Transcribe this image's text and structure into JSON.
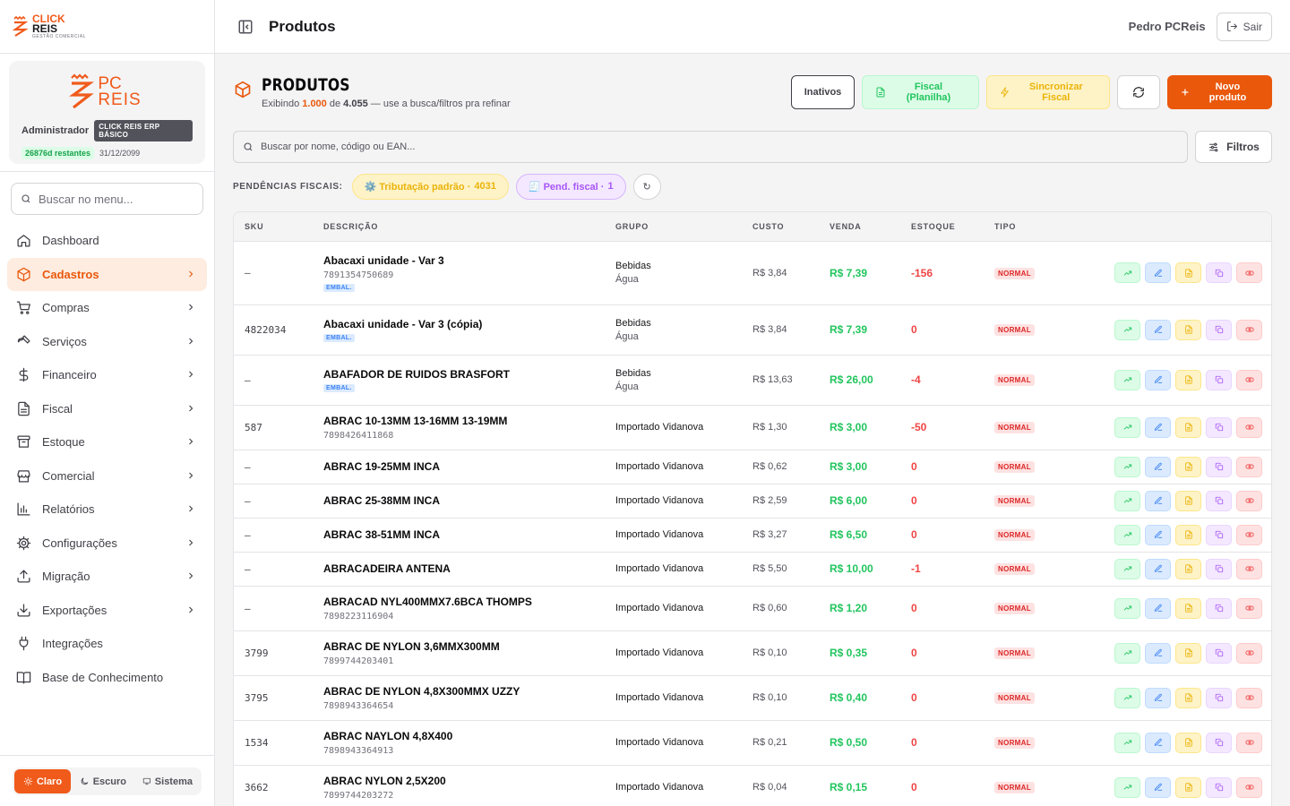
{
  "brand": {
    "logo_line1": "CLICK",
    "logo_line2": "REIS",
    "logo_tagline": "GESTÃO COMERCIAL",
    "pc_logo_line1": "PC",
    "pc_logo_line2": "REIS",
    "accent_color": "#f05a1a"
  },
  "profile": {
    "role": "Administrador",
    "plan": "CLICK REIS ERP BÁSICO",
    "days_left": "26876d restantes",
    "expiry": "31/12/2099"
  },
  "sidebar": {
    "search_placeholder": "Buscar no menu...",
    "items": [
      {
        "label": "Dashboard",
        "icon": "home-icon",
        "chevron": false,
        "active": false
      },
      {
        "label": "Cadastros",
        "icon": "box-icon",
        "chevron": true,
        "active": true
      },
      {
        "label": "Compras",
        "icon": "cart-icon",
        "chevron": true,
        "active": false
      },
      {
        "label": "Serviços",
        "icon": "wrench-icon",
        "chevron": true,
        "active": false
      },
      {
        "label": "Financeiro",
        "icon": "dollar-icon",
        "chevron": true,
        "active": false
      },
      {
        "label": "Fiscal",
        "icon": "document-icon",
        "chevron": true,
        "active": false
      },
      {
        "label": "Estoque",
        "icon": "archive-icon",
        "chevron": true,
        "active": false
      },
      {
        "label": "Comercial",
        "icon": "store-icon",
        "chevron": true,
        "active": false
      },
      {
        "label": "Relatórios",
        "icon": "bar-chart-icon",
        "chevron": true,
        "active": false
      },
      {
        "label": "Configurações",
        "icon": "gear-icon",
        "chevron": true,
        "active": false
      },
      {
        "label": "Migração",
        "icon": "upload-icon",
        "chevron": true,
        "active": false
      },
      {
        "label": "Exportações",
        "icon": "download-icon",
        "chevron": true,
        "active": false
      },
      {
        "label": "Integrações",
        "icon": "plug-icon",
        "chevron": false,
        "active": false
      },
      {
        "label": "Base de Conhecimento",
        "icon": "book-icon",
        "chevron": false,
        "active": false
      }
    ],
    "theme": {
      "light": "Claro",
      "dark": "Escuro",
      "system": "Sistema",
      "selected": "Claro"
    }
  },
  "header": {
    "title": "Produtos",
    "user": "Pedro PCReis",
    "logout": "Sair"
  },
  "page": {
    "title": "PRODUTOS",
    "subtitle_prefix": "Exibindo",
    "shown": "1.000",
    "subtitle_of": "de",
    "total": "4.055",
    "subtitle_suffix": "— use a busca/filtros pra refinar",
    "actions": {
      "inactive": "Inativos",
      "fiscal_sheet": "Fiscal (Planilha)",
      "sync_fiscal": "Sincronizar Fiscal",
      "new_product": "Novo produto"
    },
    "search_placeholder": "Buscar por nome, código ou EAN...",
    "filters": "Filtros",
    "pending_label": "PENDÊNCIAS FISCAIS:",
    "pending_tax": "⚙️ Tributação padrão ·",
    "pending_tax_count": "4031",
    "pending_fiscal": "🧾 Pend. fiscal ·",
    "pending_fiscal_count": "1",
    "pending_refresh": "↻"
  },
  "table": {
    "columns": [
      "SKU",
      "DESCRIÇÃO",
      "GRUPO",
      "CUSTO",
      "VENDA",
      "ESTOQUE",
      "TIPO",
      ""
    ],
    "rows": [
      {
        "sku": "–",
        "name": "Abacaxi unidade - Var 3",
        "ean": "7891354750689",
        "embal": "EMBAL.",
        "group": "Bebidas",
        "subgroup": "Água",
        "cost": "R$ 3,84",
        "price": "R$ 7,39",
        "stock": "-156",
        "type": "NORMAL"
      },
      {
        "sku": "4822034",
        "name": "Abacaxi unidade - Var 3 (cópia)",
        "ean": "",
        "embal": "EMBAL.",
        "group": "Bebidas",
        "subgroup": "Água",
        "cost": "R$ 3,84",
        "price": "R$ 7,39",
        "stock": "0",
        "type": "NORMAL"
      },
      {
        "sku": "–",
        "name": "ABAFADOR DE RUIDOS BRASFORT",
        "ean": "",
        "embal": "EMBAL.",
        "group": "Bebidas",
        "subgroup": "Água",
        "cost": "R$ 13,63",
        "price": "R$ 26,00",
        "stock": "-4",
        "type": "NORMAL"
      },
      {
        "sku": "587",
        "name": "ABRAC 10-13MM 13-16MM 13-19MM",
        "ean": "7898426411868",
        "embal": "",
        "group": "Importado Vidanova",
        "subgroup": "",
        "cost": "R$ 1,30",
        "price": "R$ 3,00",
        "stock": "-50",
        "type": "NORMAL"
      },
      {
        "sku": "–",
        "name": "ABRAC 19-25MM INCA",
        "ean": "",
        "embal": "",
        "group": "Importado Vidanova",
        "subgroup": "",
        "cost": "R$ 0,62",
        "price": "R$ 3,00",
        "stock": "0",
        "type": "NORMAL"
      },
      {
        "sku": "–",
        "name": "ABRAC 25-38MM INCA",
        "ean": "",
        "embal": "",
        "group": "Importado Vidanova",
        "subgroup": "",
        "cost": "R$ 2,59",
        "price": "R$ 6,00",
        "stock": "0",
        "type": "NORMAL"
      },
      {
        "sku": "–",
        "name": "ABRAC 38-51MM INCA",
        "ean": "",
        "embal": "",
        "group": "Importado Vidanova",
        "subgroup": "",
        "cost": "R$ 3,27",
        "price": "R$ 6,50",
        "stock": "0",
        "type": "NORMAL"
      },
      {
        "sku": "–",
        "name": "ABRACADEIRA ANTENA",
        "ean": "",
        "embal": "",
        "group": "Importado Vidanova",
        "subgroup": "",
        "cost": "R$ 5,50",
        "price": "R$ 10,00",
        "stock": "-1",
        "type": "NORMAL"
      },
      {
        "sku": "–",
        "name": "ABRACAD NYL400MMX7.6BCA THOMPS",
        "ean": "7898223116904",
        "embal": "",
        "group": "Importado Vidanova",
        "subgroup": "",
        "cost": "R$ 0,60",
        "price": "R$ 1,20",
        "stock": "0",
        "type": "NORMAL"
      },
      {
        "sku": "3799",
        "name": "ABRAC DE NYLON 3,6MMX300MM",
        "ean": "7899744203401",
        "embal": "",
        "group": "Importado Vidanova",
        "subgroup": "",
        "cost": "R$ 0,10",
        "price": "R$ 0,35",
        "stock": "0",
        "type": "NORMAL"
      },
      {
        "sku": "3795",
        "name": "ABRAC DE NYLON 4,8X300MMX UZZY",
        "ean": "7898943364654",
        "embal": "",
        "group": "Importado Vidanova",
        "subgroup": "",
        "cost": "R$ 0,10",
        "price": "R$ 0,40",
        "stock": "0",
        "type": "NORMAL"
      },
      {
        "sku": "1534",
        "name": "ABRAC NAYLON 4,8X400",
        "ean": "7898943364913",
        "embal": "",
        "group": "Importado Vidanova",
        "subgroup": "",
        "cost": "R$ 0,21",
        "price": "R$ 0,50",
        "stock": "0",
        "type": "NORMAL"
      },
      {
        "sku": "3662",
        "name": "ABRAC NYLON 2,5X200",
        "ean": "7899744203272",
        "embal": "",
        "group": "Importado Vidanova",
        "subgroup": "",
        "cost": "R$ 0,04",
        "price": "R$ 0,15",
        "stock": "0",
        "type": "NORMAL"
      }
    ],
    "row_actions": [
      "trend-icon",
      "edit-icon",
      "document-icon",
      "copy-icon",
      "eye-off-icon"
    ]
  },
  "colors": {
    "price": "#22c55e",
    "stock_negative": "#ef4444",
    "stock_zero": "#ef4444"
  }
}
